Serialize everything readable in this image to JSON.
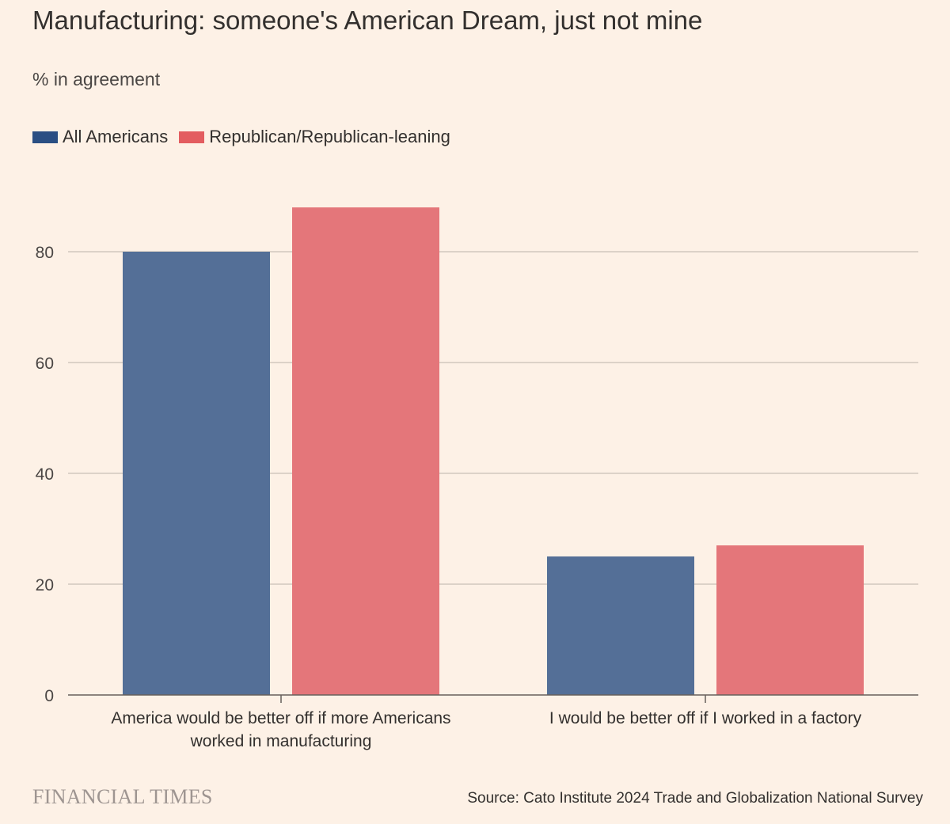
{
  "title": "Manufacturing: someone's American Dream, just not mine",
  "subtitle": "% in agreement",
  "legend": [
    {
      "label": "All Americans",
      "color": "#2A4F83"
    },
    {
      "label": "Republican/Republican-leaning",
      "color": "#E35D60"
    }
  ],
  "chart_data": {
    "type": "bar",
    "title": "Manufacturing: someone's American Dream, just not mine",
    "ylabel": "% in agreement",
    "xlabel": "",
    "ylim": [
      0,
      90
    ],
    "yticks": [
      0,
      20,
      40,
      60,
      80
    ],
    "grid": true,
    "legend_position": "top-left",
    "categories": [
      [
        "America would be better off if more Americans",
        "worked in manufacturing"
      ],
      [
        "I would be better off if I worked in a factory"
      ]
    ],
    "series": [
      {
        "name": "All Americans",
        "color": "#546F97",
        "values": [
          80,
          25
        ]
      },
      {
        "name": "Republican/Republican-leaning",
        "color": "#E4767A",
        "values": [
          88,
          27
        ]
      }
    ]
  },
  "footer": {
    "logo_text": "FINANCIAL TIMES",
    "source": "Source: Cato Institute 2024 Trade and Globalization National Survey"
  }
}
